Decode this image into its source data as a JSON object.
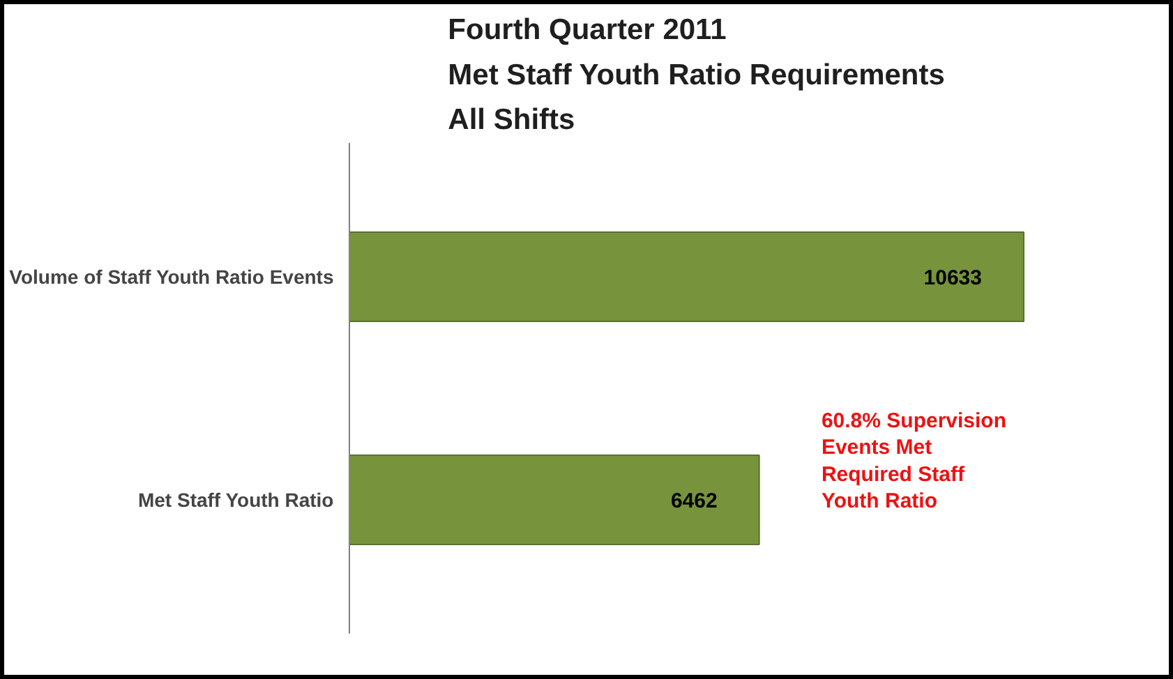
{
  "chart_data": {
    "type": "bar",
    "orientation": "horizontal",
    "title": "Fourth Quarter 2011\nMet Staff Youth Ratio Requirements\nAll Shifts",
    "categories": [
      "Volume of Staff Youth Ratio Events",
      "Met Staff Youth Ratio"
    ],
    "values": [
      10633,
      6462
    ],
    "color": "#77933c",
    "data_labels": true,
    "grid": false,
    "annotations": [
      "60.8% Supervision Events  Met Required Staff Youth Ratio"
    ]
  }
}
